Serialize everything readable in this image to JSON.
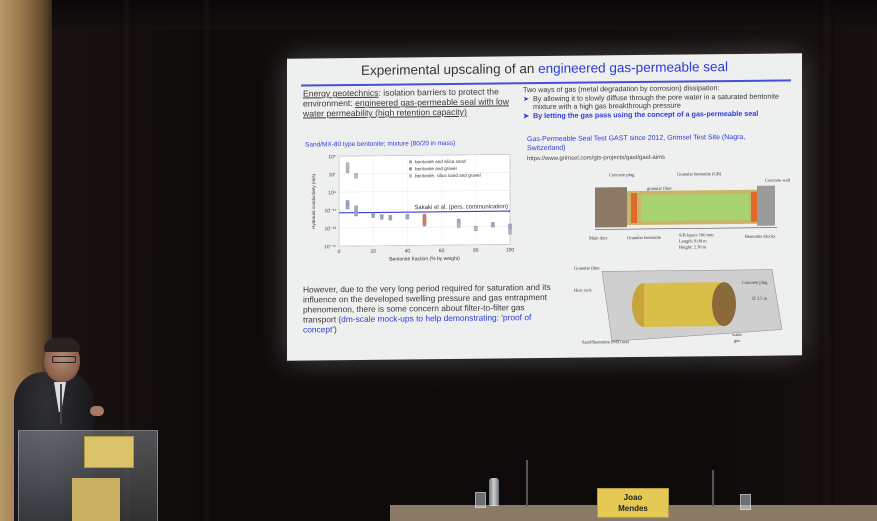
{
  "slide": {
    "title_plain": "Experimental upscaling of an ",
    "title_highlight": "engineered gas-permeable seal",
    "left_head_1": "Energy geotechnics",
    "left_head_2": ": isolation barriers to protect the environment: ",
    "left_head_3": "engineered gas-permeable seal with low water permeability (high retention capacity)",
    "chart_caption": "Sand/MX-80 type bentonite; mixture (80/20 in mass)",
    "right_intro": "Two ways of gas (metal degradation by corrosion) dissipation:",
    "right_bullet_1": "By allowing it to slowly diffuse through the pore water in a saturated bentonite mixture with a high gas breakthrough pressure",
    "right_bullet_2": "By letting the gas pass using the concept of a gas-permeable seal",
    "gast_title": "Gas-Permeable Seal Test GAST since 2012, Grimsel Test Site (Nagra, Switzerland)",
    "gast_url": "https://www.grimsel.com/gts-projects/gast/gast-aims",
    "bottom_text_plain": "However, due to the very long period required for saturation and its influence on the developed swelling pressure and gas entrapment phenomenon, there is some concern about filter-to-filter gas transport (",
    "bottom_text_blue": "dm-scale mock-ups to help demonstrating: 'proof of concept'",
    "bottom_text_end": ")",
    "diagram_labels": {
      "concrete_plug": "Concrete plug",
      "granular_bentonite": "Granular bentonite (GB)",
      "granular_filter": "granular filter",
      "concrete_wall": "Concrete wall",
      "main_duct": "Main duct",
      "granular_bentonite_2": "Granular bentonite",
      "sb_layers": "S/B layers 100 mm",
      "length": "Length: 8.00 m",
      "height": "Height: 2.30 m",
      "bentonite_blocks": "Bentonite blocks",
      "granular_filter_2": "Granular filter",
      "host_rock": "Host rock",
      "concrete_plug_2": "Concrete plug",
      "diameter": "∅ 3.5 m",
      "sb_seal": "Sand/Bentonite (S/B) seal",
      "water": "water",
      "gas": "gas"
    }
  },
  "chart_data": {
    "type": "scatter",
    "title": "",
    "xlabel": "Bentonite fraction  (% by weight)",
    "ylabel": "Hydraulic conductivity (m/s)",
    "xlim": [
      0,
      100
    ],
    "xticks": [
      "0",
      "20",
      "40",
      "60",
      "80",
      "100"
    ],
    "yticks": [
      "10⁵",
      "10⁷",
      "10⁹",
      "10⁻¹¹",
      "10⁻¹³",
      "10⁻¹⁵"
    ],
    "y_scale": "log",
    "ylim_exp": [
      -15,
      -5
    ],
    "reference_line_exp": -11.3,
    "annotation": "Sakaki et al. (pers. communication)",
    "legend_position": "top-right",
    "series": [
      {
        "name": "bentonite and silica sand",
        "color": "#9aa6c8",
        "points": [
          [
            5,
            -10.2
          ],
          [
            5,
            -10.6
          ],
          [
            10,
            -10.8
          ],
          [
            10,
            -11.4
          ],
          [
            20,
            -11.6
          ],
          [
            25,
            -11.8
          ],
          [
            30,
            -11.9
          ],
          [
            40,
            -11.8
          ],
          [
            50,
            -12.0
          ],
          [
            70,
            -12.4
          ],
          [
            90,
            -12.8
          ],
          [
            100,
            -13.0
          ]
        ]
      },
      {
        "name": "bentonite and gravel",
        "color": "#d9825a",
        "points": [
          [
            50,
            -11.8
          ],
          [
            50,
            -12.3
          ],
          [
            50,
            -12.6
          ]
        ]
      },
      {
        "name": "bentonite, silica sand and gravel",
        "color": "#b8b8b8",
        "points": [
          [
            5,
            -6.0
          ],
          [
            5,
            -6.6
          ],
          [
            10,
            -7.2
          ],
          [
            70,
            -12.8
          ],
          [
            80,
            -13.2
          ],
          [
            100,
            -13.6
          ]
        ]
      }
    ]
  },
  "speaker": {
    "nameplate_line1": "Joao",
    "nameplate_line2": "Mendes"
  },
  "colors": {
    "accent": "#2a3bd6",
    "screen_bg": "#eef0ef",
    "stage_bg": "#0d0a0a",
    "nameplate": "#e5c955"
  }
}
